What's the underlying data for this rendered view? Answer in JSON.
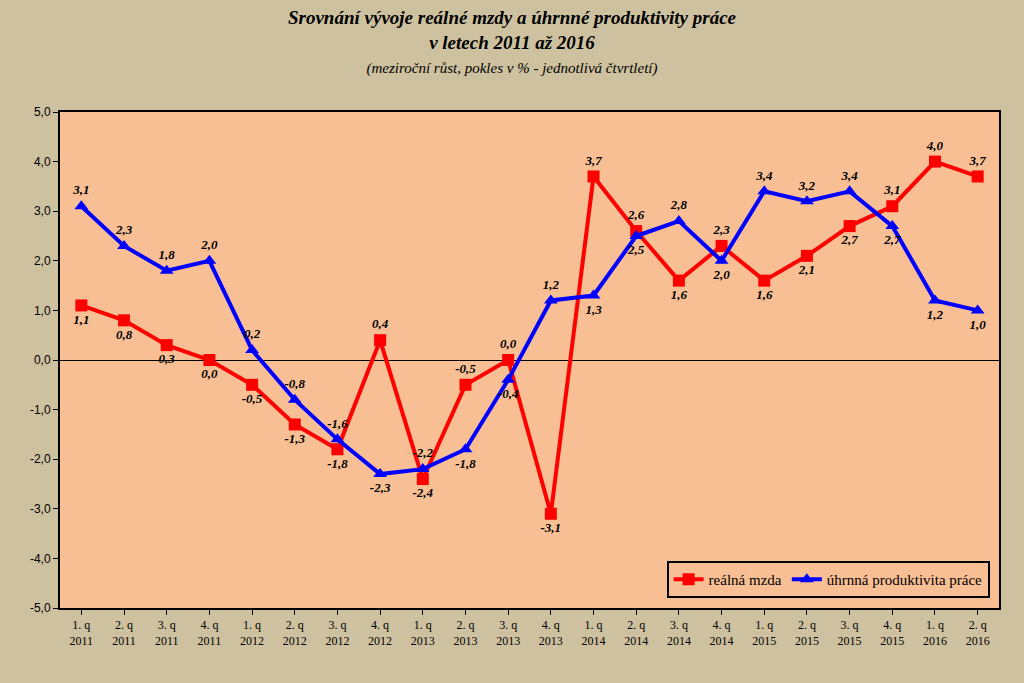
{
  "chart_data": {
    "type": "line",
    "title": "Srovnání vývoje reálné mzdy a úhrnné produktivity práce",
    "title_line2": "v letech 2011 až 2016",
    "subtitle": "(meziroční růst, pokles v % - jednotlivá čtvrtletí)",
    "categories": [
      "1. q 2011",
      "2. q 2011",
      "3. q 2011",
      "4. q 2011",
      "1. q 2012",
      "2. q 2012",
      "3. q 2012",
      "4. q 2012",
      "1. q 2013",
      "2. q 2013",
      "3. q 2013",
      "4. q 2013",
      "1. q 2014",
      "2. q 2014",
      "3. q 2014",
      "4. q 2014",
      "1. q 2015",
      "2. q 2015",
      "3. q 2015",
      "4. q 2015",
      "1. q 2016",
      "2. q 2016"
    ],
    "series": [
      {
        "name": "reálná mzda",
        "color": "#ff0000",
        "marker": "square",
        "values": [
          1.1,
          0.8,
          0.3,
          0.0,
          -0.5,
          -1.3,
          -1.8,
          0.4,
          -2.4,
          -0.5,
          0.0,
          -3.1,
          3.7,
          2.6,
          1.6,
          2.3,
          1.6,
          2.1,
          2.7,
          3.1,
          4.0,
          3.7
        ],
        "value_labels": [
          "1,1",
          "0,8",
          "0,3",
          "0,0",
          "-0,5",
          "-1,3",
          "-1,8",
          "0,4",
          "-2,4",
          "-0,5",
          "0,0",
          "-3,1",
          "3,7",
          "2,6",
          "1,6",
          "2,3",
          "1,6",
          "2,1",
          "2,7",
          "3,1",
          "4,0",
          "3,7"
        ]
      },
      {
        "name": "úhrnná produktivita práce",
        "color": "#0000ff",
        "marker": "triangle-up",
        "values": [
          3.1,
          2.3,
          1.8,
          2.0,
          0.2,
          -0.8,
          -1.6,
          -2.3,
          -2.2,
          -1.8,
          -0.4,
          1.2,
          1.3,
          2.5,
          2.8,
          2.0,
          3.4,
          3.2,
          3.4,
          2.7,
          1.2,
          1.0
        ],
        "value_labels": [
          "3,1",
          "2,3",
          "1,8",
          "2,0",
          "0,2",
          "-0,8",
          "-1,6",
          "-2,3",
          "-2,2",
          "-1,8",
          "-0,4",
          "1,2",
          "1,3",
          "2,5",
          "2,8",
          "2,0",
          "3,4",
          "3,2",
          "3,4",
          "2,7",
          "1,2",
          "1,0"
        ]
      }
    ],
    "ylim": [
      -5,
      5
    ],
    "yticks": [
      {
        "value": -5,
        "label": "-5,0"
      },
      {
        "value": -4,
        "label": "-4,0"
      },
      {
        "value": -3,
        "label": "-3,0"
      },
      {
        "value": -2,
        "label": "-2,0"
      },
      {
        "value": -1,
        "label": "-1,0"
      },
      {
        "value": 0,
        "label": "0,0"
      },
      {
        "value": 1,
        "label": "1,0"
      },
      {
        "value": 2,
        "label": "2,0"
      },
      {
        "value": 3,
        "label": "3,0"
      },
      {
        "value": 4,
        "label": "4,0"
      },
      {
        "value": 5,
        "label": "5,0"
      }
    ],
    "grid": false,
    "legend": "bottom right",
    "data_labels": true
  }
}
